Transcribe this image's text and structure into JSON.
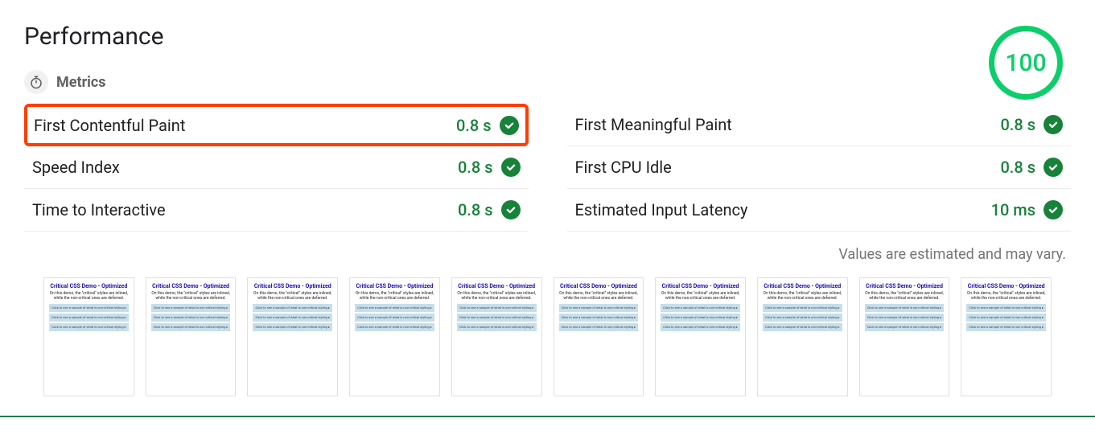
{
  "performance": {
    "title": "Performance",
    "score": "100",
    "score_color": "#0cce6b",
    "score_ring_width": 7
  },
  "metrics_section": {
    "label": "Metrics",
    "icon": "stopwatch-icon"
  },
  "metrics": [
    {
      "name": "First Contentful Paint",
      "value": "0.8 s",
      "status": "pass",
      "highlighted": true
    },
    {
      "name": "First Meaningful Paint",
      "value": "0.8 s",
      "status": "pass",
      "highlighted": false
    },
    {
      "name": "Speed Index",
      "value": "0.8 s",
      "status": "pass",
      "highlighted": false
    },
    {
      "name": "First CPU Idle",
      "value": "0.8 s",
      "status": "pass",
      "highlighted": false
    },
    {
      "name": "Time to Interactive",
      "value": "0.8 s",
      "status": "pass",
      "highlighted": false
    },
    {
      "name": "Estimated Input Latency",
      "value": "10 ms",
      "status": "pass",
      "highlighted": false
    }
  ],
  "status_colors": {
    "pass_value_text": "#178239",
    "pass_badge_bg": "#178239",
    "pass_badge_fg": "#ffffff"
  },
  "highlight_border_color": "#ff3d00",
  "footnote": "Values are estimated and may vary.",
  "filmstrip": {
    "frame_count": 10,
    "thumb_title": "Critical CSS Demo - Optimized",
    "thumb_subtitle": "On this demo, the \"critical\" styles are inlined, while the non-critical ones are deferred.",
    "thumb_row_text": "Click to see a sample of what is non-critical styling ▸",
    "thumb_bg": "#ffffff",
    "thumb_border": "#e0e0e0",
    "thumb_title_color": "#1a0dab",
    "thumb_row_bg": "#c5dfed"
  }
}
